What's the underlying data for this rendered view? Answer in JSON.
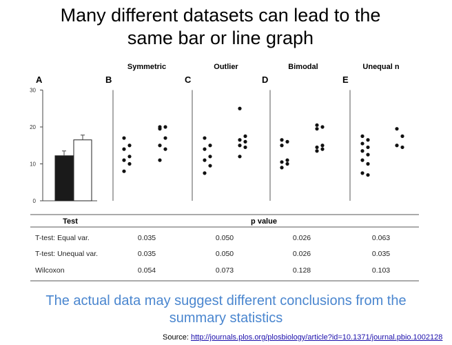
{
  "slide": {
    "title_line1": "Many different datasets can lead to the",
    "title_line2": "same bar or line graph",
    "subtitle_line1": "The actual data may suggest different conclusions from the",
    "subtitle_line2": "summary statistics",
    "source_label": "Source:",
    "source_link": "http://journals.plos.org/plosbiology/article?id=10.1371/journal.pbio.1002128"
  },
  "chart_data": [
    {
      "type": "bar",
      "panel": "A",
      "categories": [
        "",
        ""
      ],
      "values": [
        12.2,
        16.5
      ],
      "errors": [
        1.3,
        1.3
      ],
      "fills": [
        "#1a1a1a",
        "#ffffff"
      ],
      "ylim": [
        0,
        30
      ],
      "yticks": [
        "0",
        "10",
        "20",
        "30"
      ]
    },
    {
      "type": "scatter",
      "panel": "B",
      "title": "Symmetric",
      "ylim": [
        0,
        30
      ],
      "groups": [
        [
          17,
          15,
          14,
          12,
          11,
          10,
          8
        ],
        [
          20,
          19.5,
          20,
          17,
          15,
          14,
          11
        ]
      ]
    },
    {
      "type": "scatter",
      "panel": "C",
      "title": "Outlier",
      "ylim": [
        0,
        30
      ],
      "groups": [
        [
          17,
          15,
          14,
          12,
          11,
          9.5,
          7.5
        ],
        [
          25,
          17.5,
          16.5,
          16,
          15,
          14.5,
          12
        ]
      ]
    },
    {
      "type": "scatter",
      "panel": "D",
      "title": "Bimodal",
      "ylim": [
        0,
        30
      ],
      "groups": [
        [
          16.5,
          16,
          15,
          11,
          10.5,
          10,
          9
        ],
        [
          20.5,
          20,
          19.5,
          15,
          14.5,
          14,
          13.5
        ]
      ]
    },
    {
      "type": "scatter",
      "panel": "E",
      "title": "Unequal n",
      "ylim": [
        0,
        30
      ],
      "groups": [
        [
          17.5,
          16.5,
          15.5,
          14.5,
          13.5,
          12.5,
          11,
          10,
          7.5,
          7
        ],
        [
          19.5,
          17.5,
          15,
          14.5
        ]
      ]
    },
    {
      "type": "table",
      "columns": [
        "Test",
        "p value"
      ],
      "rows": [
        {
          "test": "T-test: Equal var.",
          "p": [
            "0.035",
            "0.050",
            "0.026",
            "0.063"
          ]
        },
        {
          "test": "T-test: Unequal var.",
          "p": [
            "0.035",
            "0.050",
            "0.026",
            "0.035"
          ]
        },
        {
          "test": "Wilcoxon",
          "p": [
            "0.054",
            "0.073",
            "0.128",
            "0.103"
          ]
        }
      ]
    }
  ]
}
